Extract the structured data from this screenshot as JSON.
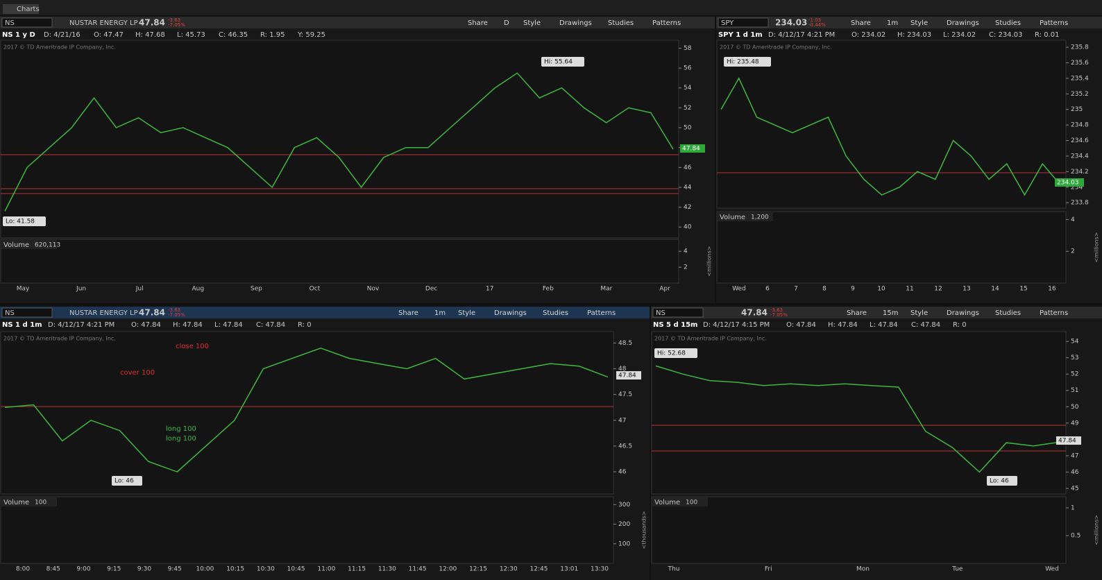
{
  "window_title": "Charts",
  "panels": [
    {
      "symbol": "NS",
      "name": "NUSTAR ENERGY LP",
      "last": "47.84",
      "change": "-3.63",
      "change_pct": "-7.05%",
      "buttons": [
        "Share",
        "D",
        "Style",
        "Drawings",
        "Studies",
        "Patterns"
      ],
      "info": [
        "NS 1 y D",
        "D: 4/21/16",
        "O: 47.47",
        "H: 47.68",
        "L: 45.73",
        "C: 46.35",
        "R: 1.95",
        "Y: 59.25"
      ],
      "copyright": "2017 © TD Ameritrade IP Company, Inc.",
      "ylim": [
        38.9,
        58.8
      ],
      "yticks": [
        40,
        42,
        44,
        46,
        48,
        50,
        52,
        54,
        56,
        58
      ],
      "price": [
        41.6,
        46,
        48,
        50,
        53,
        50,
        51,
        49.5,
        50,
        49,
        48,
        46,
        44,
        48,
        49,
        47,
        44,
        47,
        48,
        48,
        50,
        52,
        54,
        55.5,
        53,
        54,
        52,
        50.5,
        52,
        51.5,
        47.84
      ],
      "xlabels": [
        "May",
        "Jun",
        "Jul",
        "Aug",
        "Sep",
        "Oct",
        "Nov",
        "Dec",
        "17",
        "Feb",
        "Mar",
        "Apr"
      ],
      "volume_label": "Volume",
      "volume_value": "620,113",
      "volume_ylim": [
        0,
        5.5
      ],
      "volume_yticks": [
        2,
        4
      ],
      "volume_unit": "<millions>",
      "annotations": [
        "Hi: 55.64",
        "Lo: 41.58",
        "47.84"
      ]
    },
    {
      "symbol": "SPY",
      "last": "234.03",
      "change": "-1.03",
      "change_pct": "-0.44%",
      "buttons": [
        "Share",
        "1m",
        "Style",
        "Drawings",
        "Studies",
        "Patterns"
      ],
      "info": [
        "SPY 1 d 1m",
        "D: 4/12/17 4:21 PM",
        "O: 234.02",
        "H: 234.03",
        "L: 234.02",
        "C: 234.03",
        "R: 0.01"
      ],
      "copyright": "2017 © TD Ameritrade IP Company, Inc.",
      "ylim": [
        233.73,
        235.89
      ],
      "yticks": [
        233.8,
        234,
        234.2,
        234.4,
        234.6,
        234.8,
        235,
        235.2,
        235.4,
        235.6,
        235.8
      ],
      "price": [
        235,
        235.4,
        234.9,
        234.8,
        234.7,
        234.8,
        234.9,
        234.4,
        234.1,
        233.9,
        234,
        234.2,
        234.1,
        234.6,
        234.4,
        234.1,
        234.3,
        233.9,
        234.3,
        234.03
      ],
      "xlabels": [
        "Wed",
        "6",
        "7",
        "8",
        "9",
        "10",
        "11",
        "12",
        "13",
        "14",
        "15",
        "16"
      ],
      "volume_label": "Volume",
      "volume_value": "1,200",
      "volume_ylim": [
        0,
        4.5
      ],
      "volume_yticks": [
        2,
        4
      ],
      "volume_unit": "<millions>",
      "annotations": [
        "Hi: 235.48",
        "234.03"
      ]
    },
    {
      "symbol": "NS",
      "name": "NUSTAR ENERGY LP",
      "last": "47.84",
      "change": "-3.63",
      "change_pct": "-7.05%",
      "buttons": [
        "Share",
        "1m",
        "Style",
        "Drawings",
        "Studies",
        "Patterns"
      ],
      "info": [
        "NS 1 d 1m",
        "D: 4/12/17 4:21 PM",
        "O: 47.84",
        "H: 47.84",
        "L: 47.84",
        "C: 47.84",
        "R: 0"
      ],
      "copyright": "2017 © TD Ameritrade IP Company, Inc.",
      "ylim": [
        45.57,
        48.72
      ],
      "yticks": [
        46,
        46.5,
        47,
        47.5,
        48,
        48.5
      ],
      "price": [
        47.25,
        47.3,
        46.6,
        47,
        46.8,
        46.2,
        46,
        46.5,
        47,
        48,
        48.2,
        48.4,
        48.2,
        48.1,
        48,
        48.2,
        47.8,
        47.9,
        48,
        48.1,
        48.05,
        47.84
      ],
      "xlabels": [
        "8:00",
        "8:45",
        "9:00",
        "9:15",
        "9:30",
        "9:45",
        "10:00",
        "10:15",
        "10:30",
        "10:45",
        "11:00",
        "11:15",
        "11:30",
        "11:45",
        "12:00",
        "12:15",
        "12:30",
        "12:45",
        "13:01",
        "13:30"
      ],
      "volume_label": "Volume",
      "volume_value": "100",
      "volume_ylim": [
        0,
        340
      ],
      "volume_yticks": [
        100,
        200,
        300
      ],
      "volume_unit": "<thousands>",
      "annotations": [
        "close 100",
        "cover 100",
        "long 100",
        "long 100",
        "Lo: 46",
        "47.84"
      ]
    },
    {
      "symbol": "NS",
      "last": "47.84",
      "change": "-3.63",
      "change_pct": "-7.05%",
      "buttons": [
        "Share",
        "15m",
        "Style",
        "Drawings",
        "Studies",
        "Patterns"
      ],
      "info": [
        "NS 5 d 15m",
        "D: 4/12/17 4:15 PM",
        "O: 47.84",
        "H: 47.84",
        "L: 47.84",
        "C: 47.84",
        "R: 0"
      ],
      "copyright": "2017 © TD Ameritrade IP Company, Inc.",
      "ylim": [
        44.66,
        54.6
      ],
      "yticks": [
        45,
        46,
        47,
        48,
        49,
        50,
        51,
        52,
        53,
        54
      ],
      "price": [
        52.5,
        52,
        51.6,
        51.5,
        51.3,
        51.4,
        51.3,
        51.4,
        51.3,
        51.2,
        48.5,
        47.5,
        46,
        47.8,
        47.6,
        47.84
      ],
      "xlabels": [
        "Thu",
        "Fri",
        "Mon",
        "Tue",
        "Wed"
      ],
      "volume_label": "Volume",
      "volume_value": "100",
      "volume_ylim": [
        0,
        1.2
      ],
      "volume_yticks": [
        0.5,
        1
      ],
      "volume_unit": "<millions>",
      "annotations": [
        "Hi: 52.68",
        "Lo: 46",
        "47.84"
      ]
    }
  ]
}
